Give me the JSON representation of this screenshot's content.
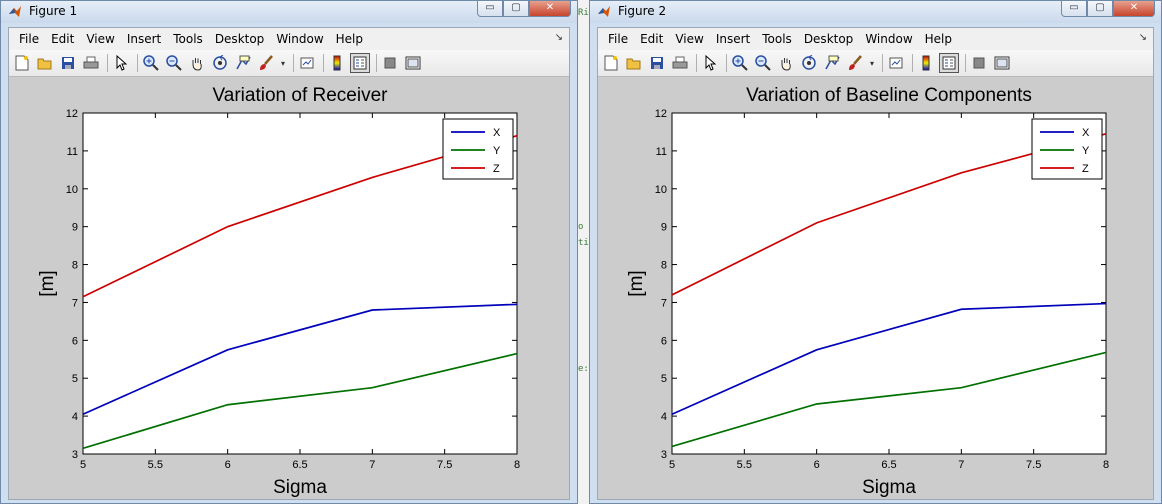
{
  "menus": [
    "File",
    "Edit",
    "View",
    "Insert",
    "Tools",
    "Desktop",
    "Window",
    "Help"
  ],
  "menu_arrow": "↘",
  "window_buttons": {
    "minimize": "▭",
    "maximize": "▢",
    "close": "✕"
  },
  "toolbar_icons": [
    "new-file-icon",
    "open-folder-icon",
    "save-icon",
    "print-icon",
    "pointer-icon",
    "zoom-in-icon",
    "zoom-out-icon",
    "pan-icon",
    "rotate-icon",
    "data-cursor-icon",
    "brush-icon",
    "link-plot-icon",
    "colorbar-icon",
    "legend-icon",
    "hide-plot-tools-icon",
    "show-plot-tools-icon"
  ],
  "gap_text": [
    "Ri",
    "o",
    "ti",
    "e:"
  ],
  "figures": [
    {
      "title": "Figure 1",
      "chart_data": {
        "type": "line",
        "title": "Variation of Receiver",
        "xlabel": "Sigma",
        "ylabel": "[m]",
        "xlim": [
          5,
          8
        ],
        "ylim": [
          3,
          12
        ],
        "xticks": [
          "5",
          "5.5",
          "6",
          "6.5",
          "7",
          "7.5",
          "8"
        ],
        "yticks": [
          "3",
          "4",
          "5",
          "6",
          "7",
          "8",
          "9",
          "10",
          "11",
          "12"
        ],
        "legend_position": "top-right",
        "series": [
          {
            "name": "X",
            "color": "#0000bb",
            "x": [
              5,
              6,
              7,
              8
            ],
            "y": [
              4.05,
              5.75,
              6.8,
              6.95
            ]
          },
          {
            "name": "Y",
            "color": "#007000",
            "x": [
              5,
              6,
              7,
              8
            ],
            "y": [
              3.15,
              4.3,
              4.75,
              5.65
            ]
          },
          {
            "name": "Z",
            "color": "#cc0000",
            "x": [
              5,
              6,
              7,
              8
            ],
            "y": [
              7.15,
              9.0,
              10.3,
              11.4
            ]
          }
        ]
      }
    },
    {
      "title": "Figure 2",
      "chart_data": {
        "type": "line",
        "title": "Variation of Baseline Components",
        "xlabel": "Sigma",
        "ylabel": "[m]",
        "xlim": [
          5,
          8
        ],
        "ylim": [
          3,
          12
        ],
        "xticks": [
          "5",
          "5.5",
          "6",
          "6.5",
          "7",
          "7.5",
          "8"
        ],
        "yticks": [
          "3",
          "4",
          "5",
          "6",
          "7",
          "8",
          "9",
          "10",
          "11",
          "12"
        ],
        "legend_position": "top-right",
        "series": [
          {
            "name": "X",
            "color": "#0000bb",
            "x": [
              5,
              6,
              7,
              8
            ],
            "y": [
              4.05,
              5.75,
              6.82,
              6.97
            ]
          },
          {
            "name": "Y",
            "color": "#007000",
            "x": [
              5,
              6,
              7,
              8
            ],
            "y": [
              3.2,
              4.32,
              4.75,
              5.68
            ]
          },
          {
            "name": "Z",
            "color": "#cc0000",
            "x": [
              5,
              6,
              7,
              8
            ],
            "y": [
              7.2,
              9.1,
              10.42,
              11.45
            ]
          }
        ]
      }
    }
  ]
}
